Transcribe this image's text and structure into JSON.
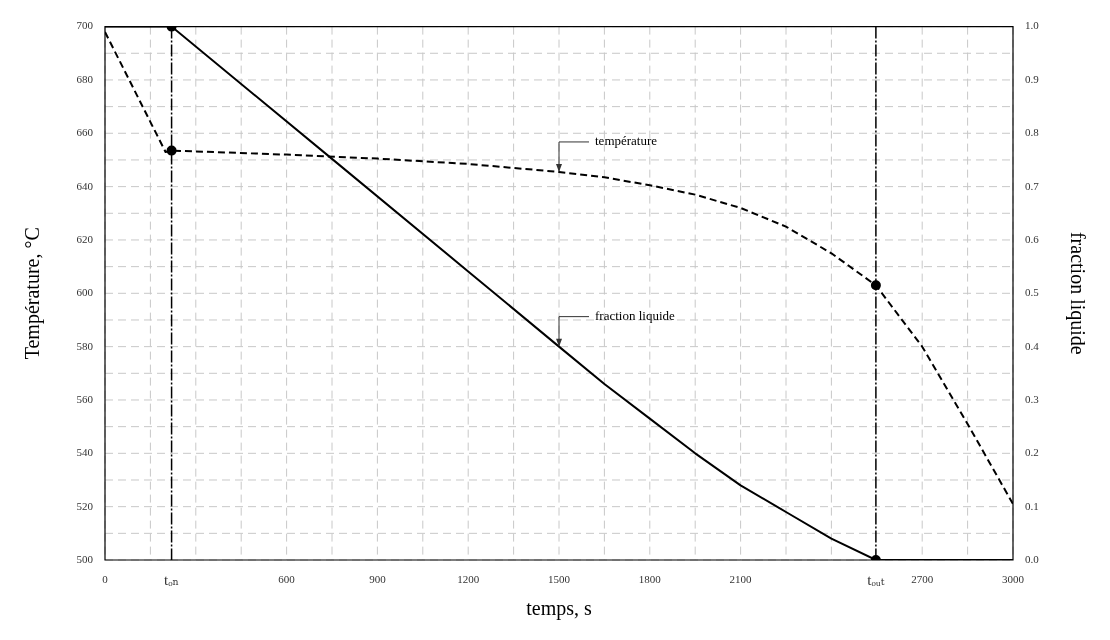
{
  "chart_data": {
    "type": "line",
    "xlabel": "temps, s",
    "ylabel": "Température, °C",
    "y2label": "fraction liquide",
    "xlim": [
      0,
      3000
    ],
    "ylim": [
      500,
      700
    ],
    "y2lim": [
      0,
      1
    ],
    "xticks": [
      0,
      {
        "value": 150,
        "label": null
      },
      {
        "value": 300,
        "label": null
      },
      {
        "value": 450,
        "label": null
      },
      600,
      {
        "value": 750,
        "label": null
      },
      900,
      {
        "value": 1050,
        "label": null
      },
      1200,
      {
        "value": 1350,
        "label": null
      },
      1500,
      {
        "value": 1650,
        "label": null
      },
      1800,
      {
        "value": 1950,
        "label": null
      },
      2100,
      {
        "value": 2250,
        "label": null
      },
      {
        "value": 2400,
        "label": null
      },
      2700,
      {
        "value": 2850,
        "label": null
      },
      3000
    ],
    "yticks": [
      500,
      {
        "value": 510,
        "label": null
      },
      520,
      {
        "value": 530,
        "label": null
      },
      540,
      {
        "value": 550,
        "label": null
      },
      560,
      {
        "value": 570,
        "label": null
      },
      580,
      {
        "value": 590,
        "label": null
      },
      600,
      {
        "value": 610,
        "label": null
      },
      620,
      {
        "value": 630,
        "label": null
      },
      640,
      {
        "value": 650,
        "label": null
      },
      660,
      {
        "value": 670,
        "label": null
      },
      680,
      {
        "value": 690,
        "label": null
      },
      700
    ],
    "y2ticks": [
      {
        "value": 0,
        "label": "0.0"
      },
      0.1,
      0.2,
      0.3,
      0.4,
      0.5,
      0.6,
      0.7,
      0.8,
      0.9,
      {
        "value": 1,
        "label": "1.0"
      }
    ],
    "grid": true,
    "legend": false,
    "series": [
      {
        "line_style": "dashed",
        "color": "#000000",
        "x": [
          0,
          200,
          220,
          600,
          900,
          1200,
          1500,
          1650,
          1800,
          1950,
          2100,
          2250,
          2400,
          2547,
          2700,
          2850,
          3000
        ],
        "values": [
          698,
          653,
          653.5,
          652,
          650.5,
          648.5,
          645.5,
          643.5,
          640.5,
          637,
          632,
          625,
          615,
          603,
          580,
          551,
          521
        ]
      },
      {
        "axis": "y2",
        "line_style": "solid",
        "color": "#000000",
        "x": [
          0,
          220,
          750,
          1200,
          1500,
          1650,
          1800,
          1950,
          2100,
          2250,
          2400,
          2547,
          3000
        ],
        "values": [
          1,
          1,
          0.752,
          0.541,
          0.4,
          0.33,
          0.265,
          0.2,
          0.14,
          0.09,
          0.04,
          0,
          0
        ]
      },
      {
        "type": "scatter",
        "marker": "circle",
        "color": "#000000",
        "x": [
          220,
          2547
        ],
        "values": [
          653.5,
          603
        ]
      },
      {
        "type": "scatter",
        "axis": "y2",
        "marker": "circle",
        "color": "#000000",
        "x": [
          220,
          2547
        ],
        "values": [
          1,
          0
        ]
      }
    ],
    "ref_lines": [
      {
        "axis": "x",
        "value": 220,
        "label": "tₒₙ",
        "color": "#000000"
      },
      {
        "axis": "x",
        "value": 2547,
        "label": "tₒᵤₜ",
        "color": "#000000"
      }
    ],
    "annotations": [
      {
        "text": "température",
        "x": 1500,
        "y": 645.5
      },
      {
        "text": "fraction liquide",
        "x": 1500,
        "y": 580
      }
    ]
  }
}
